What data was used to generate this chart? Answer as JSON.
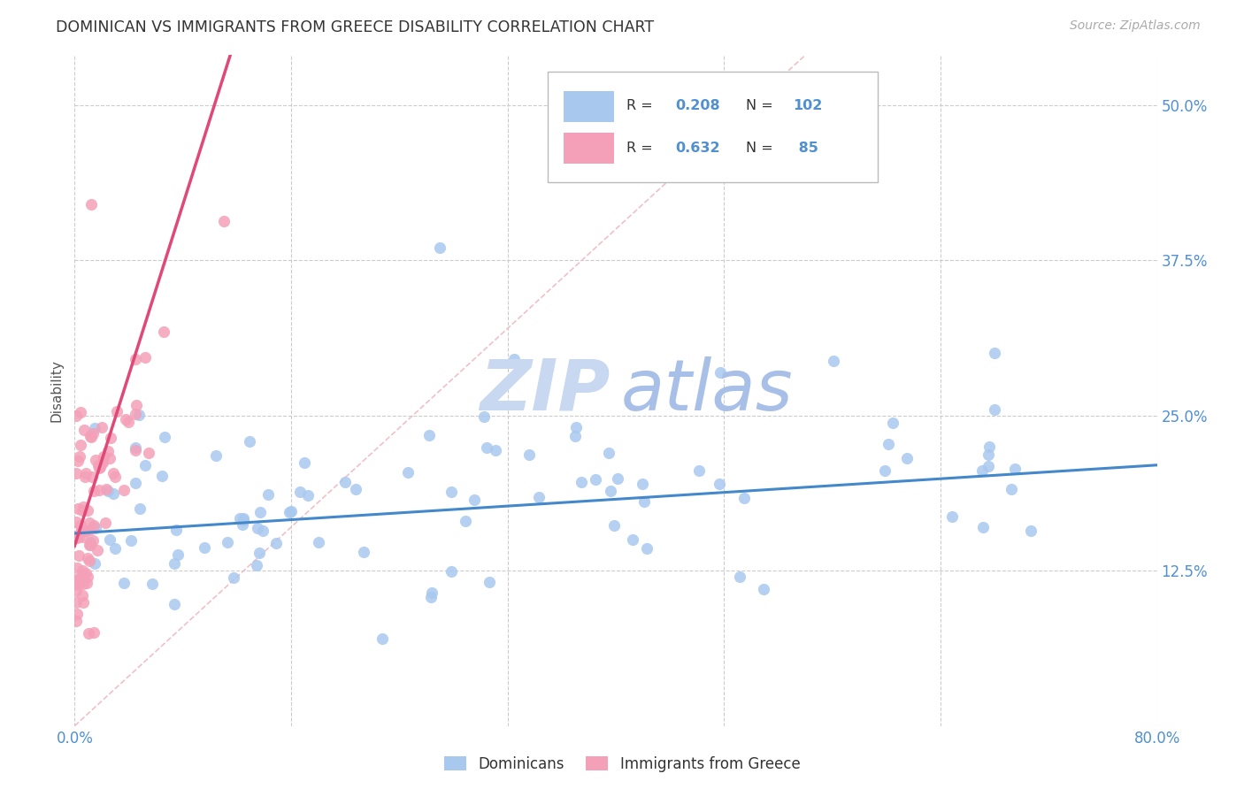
{
  "title": "DOMINICAN VS IMMIGRANTS FROM GREECE DISABILITY CORRELATION CHART",
  "source": "Source: ZipAtlas.com",
  "ylabel": "Disability",
  "legend_blue_R": "0.208",
  "legend_blue_N": "102",
  "legend_pink_R": "0.632",
  "legend_pink_N": "85",
  "legend_blue_label": "Dominicans",
  "legend_pink_label": "Immigrants from Greece",
  "blue_color": "#A8C8EE",
  "pink_color": "#F4A0B8",
  "trendline_blue": "#4488CC",
  "trendline_pink": "#E04878",
  "diag_color": "#F0C0C8",
  "watermark_zip_color": "#C8D8F0",
  "watermark_atlas_color": "#A8C0E8",
  "xlim": [
    0.0,
    0.8
  ],
  "ylim": [
    0.0,
    0.54
  ],
  "ytick_vals": [
    0.125,
    0.25,
    0.375,
    0.5
  ],
  "ytick_labels": [
    "12.5%",
    "25.0%",
    "37.5%",
    "50.0%"
  ],
  "xtick_vals": [
    0.0,
    0.16,
    0.32,
    0.48,
    0.64,
    0.8
  ],
  "xtick_labels": [
    "0.0%",
    "",
    "",
    "",
    "",
    "80.0%"
  ],
  "figsize": [
    14.06,
    8.92
  ],
  "dpi": 100
}
